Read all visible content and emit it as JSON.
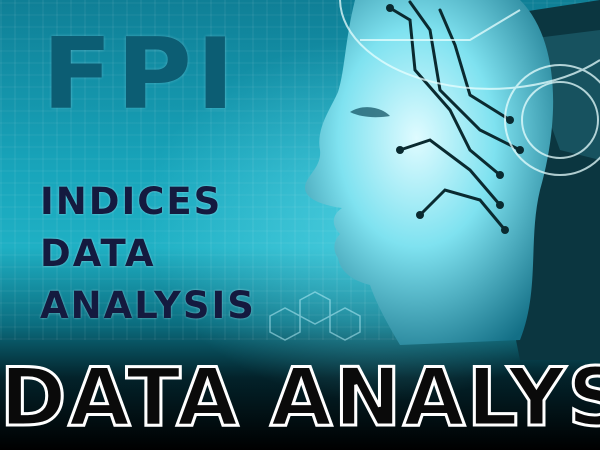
{
  "banner": {
    "brand": "FPI",
    "subtitle_lines": [
      "INDICES",
      "DATA",
      "ANALYSIS"
    ],
    "bottom_text": "DATA ANALYSIS"
  },
  "colors": {
    "background_teal": "#18a5bb",
    "brand_text": "#0c5d73",
    "subtitle_text": "#141a3f",
    "bottom_outline": "#ffffff"
  },
  "icons": {
    "illustration": "robot-head-with-circuit-wires"
  }
}
